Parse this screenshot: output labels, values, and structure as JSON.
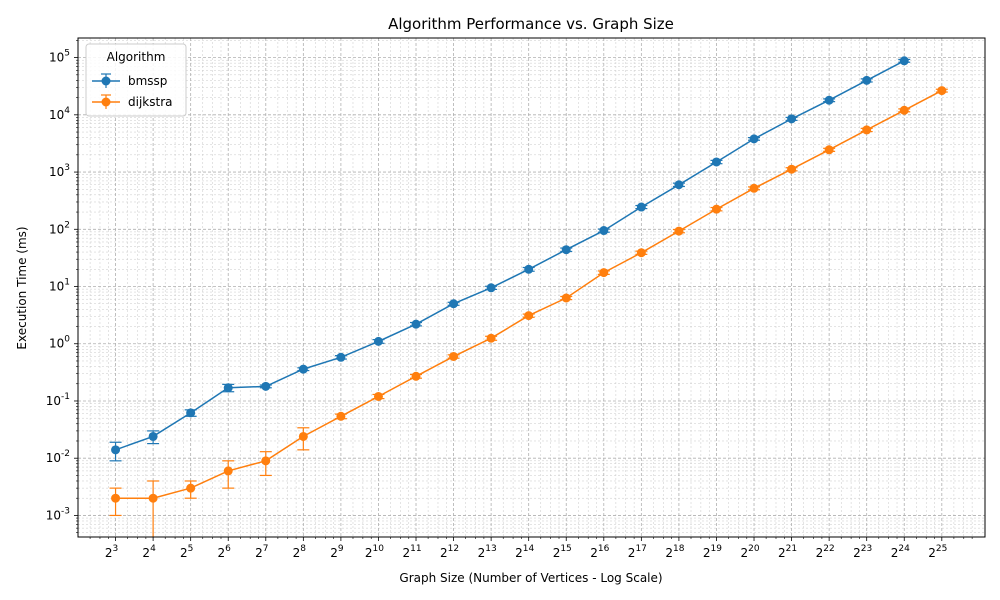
{
  "chart_data": {
    "type": "line",
    "title": "Algorithm Performance vs. Graph Size",
    "xlabel": "Graph Size (Number of Vertices - Log Scale)",
    "ylabel": "Execution Time (ms)",
    "x_scale": "log2",
    "y_scale": "log10",
    "x_tick_exponents": [
      3,
      4,
      5,
      6,
      7,
      8,
      9,
      10,
      11,
      12,
      13,
      14,
      15,
      16,
      17,
      18,
      19,
      20,
      21,
      22,
      23,
      24,
      25
    ],
    "x_tick_base": "2",
    "y_tick_exponents": [
      -3,
      -2,
      -1,
      0,
      1,
      2,
      3,
      4,
      5
    ],
    "y_tick_base": "10",
    "grid": true,
    "legend": {
      "title": "Algorithm",
      "placement": "top-left"
    },
    "series": [
      {
        "name": "bmssp",
        "color": "#1f77b4",
        "x": [
          8,
          16,
          32,
          64,
          128,
          256,
          512,
          1024,
          2048,
          4096,
          8192,
          16384,
          32768,
          65536,
          131072,
          262144,
          524288,
          1048576,
          2097152,
          4194304,
          8388608,
          16777216
        ],
        "y": [
          0.014,
          0.024,
          0.062,
          0.17,
          0.18,
          0.36,
          0.58,
          1.1,
          2.2,
          5.0,
          9.5,
          20,
          44,
          95,
          245,
          600,
          1500,
          3800,
          8500,
          18000,
          40000,
          88000
        ],
        "err": [
          0.005,
          0.006,
          0.008,
          0.025,
          0.01,
          0.02,
          0.04,
          0.08,
          0.15,
          0.3,
          0.6,
          1.5,
          3,
          6,
          15,
          40,
          100,
          200,
          500,
          1000,
          2500,
          5000
        ]
      },
      {
        "name": "dijkstra",
        "color": "#ff7f0e",
        "x": [
          8,
          16,
          32,
          64,
          128,
          256,
          512,
          1024,
          2048,
          4096,
          8192,
          16384,
          32768,
          65536,
          131072,
          262144,
          524288,
          1048576,
          2097152,
          4194304,
          8388608,
          16777216,
          33554432
        ],
        "y": [
          0.002,
          0.002,
          0.003,
          0.006,
          0.009,
          0.024,
          0.054,
          0.12,
          0.27,
          0.6,
          1.25,
          3.1,
          6.3,
          17.5,
          39,
          93,
          225,
          520,
          1120,
          2450,
          5450,
          12000,
          26500
        ],
        "err": [
          0.001,
          0.002,
          0.001,
          0.003,
          0.004,
          0.01,
          0.005,
          0.01,
          0.02,
          0.04,
          0.1,
          0.2,
          0.4,
          1.2,
          2.5,
          6,
          15,
          30,
          70,
          150,
          350,
          700,
          1500
        ]
      }
    ]
  }
}
